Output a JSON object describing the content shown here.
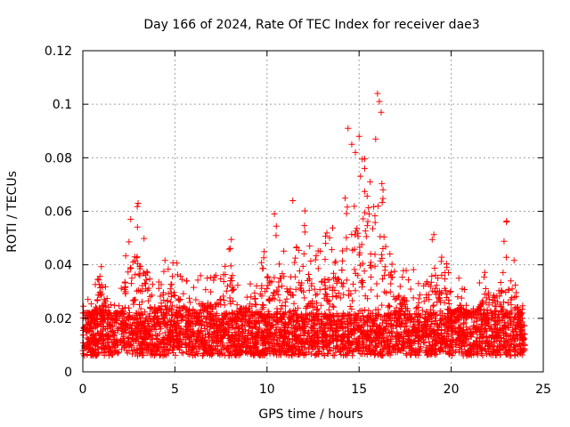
{
  "chart_data": {
    "type": "scatter",
    "title": "Day 166 of 2024, Rate Of TEC Index for receiver dae3",
    "xlabel": "GPS time / hours",
    "ylabel": "ROTI / TECUs",
    "xlim": [
      0,
      25
    ],
    "ylim": [
      0,
      0.12
    ],
    "xticks": [
      "0",
      "5",
      "10",
      "15",
      "20",
      "25"
    ],
    "yticks": [
      "0",
      "0.02",
      "0.04",
      "0.06",
      "0.08",
      "0.1",
      "0.12"
    ],
    "grid": true,
    "marker": "+",
    "color": "#ff0000",
    "series": [
      {
        "name": "ROTI",
        "envelope_hours": [
          0,
          0.5,
          1,
          1.5,
          2,
          2.5,
          3,
          3.5,
          4,
          4.5,
          5,
          5.5,
          6,
          6.5,
          7,
          7.5,
          8,
          8.5,
          9,
          9.5,
          10,
          10.5,
          11,
          11.5,
          12,
          12.5,
          13,
          13.5,
          14,
          14.5,
          15,
          15.5,
          16,
          16.5,
          17,
          17.5,
          18,
          18.5,
          19,
          19.5,
          20,
          20.5,
          21,
          21.5,
          22,
          22.5,
          23,
          23.5,
          24
        ],
        "envelope_max": [
          0.031,
          0.027,
          0.048,
          0.026,
          0.027,
          0.057,
          0.063,
          0.048,
          0.032,
          0.046,
          0.043,
          0.035,
          0.034,
          0.038,
          0.036,
          0.039,
          0.052,
          0.034,
          0.035,
          0.046,
          0.046,
          0.059,
          0.044,
          0.044,
          0.064,
          0.046,
          0.052,
          0.055,
          0.052,
          0.092,
          0.088,
          0.085,
          0.104,
          0.066,
          0.043,
          0.038,
          0.045,
          0.053,
          0.051,
          0.055,
          0.031,
          0.036,
          0.027,
          0.036,
          0.041,
          0.041,
          0.057,
          0.039,
          0.024
        ],
        "typical_low": 0.006,
        "typical_high": 0.022,
        "peaks": [
          {
            "x": 2.6,
            "y": 0.057
          },
          {
            "x": 3.0,
            "y": 0.063
          },
          {
            "x": 10.4,
            "y": 0.059
          },
          {
            "x": 11.4,
            "y": 0.064
          },
          {
            "x": 14.4,
            "y": 0.091
          },
          {
            "x": 14.6,
            "y": 0.085
          },
          {
            "x": 14.8,
            "y": 0.082
          },
          {
            "x": 15.0,
            "y": 0.088
          },
          {
            "x": 15.3,
            "y": 0.076
          },
          {
            "x": 15.6,
            "y": 0.071
          },
          {
            "x": 15.9,
            "y": 0.087
          },
          {
            "x": 16.0,
            "y": 0.104
          },
          {
            "x": 16.1,
            "y": 0.101
          },
          {
            "x": 16.2,
            "y": 0.097
          },
          {
            "x": 16.3,
            "y": 0.068
          },
          {
            "x": 23.0,
            "y": 0.056
          }
        ]
      }
    ]
  }
}
